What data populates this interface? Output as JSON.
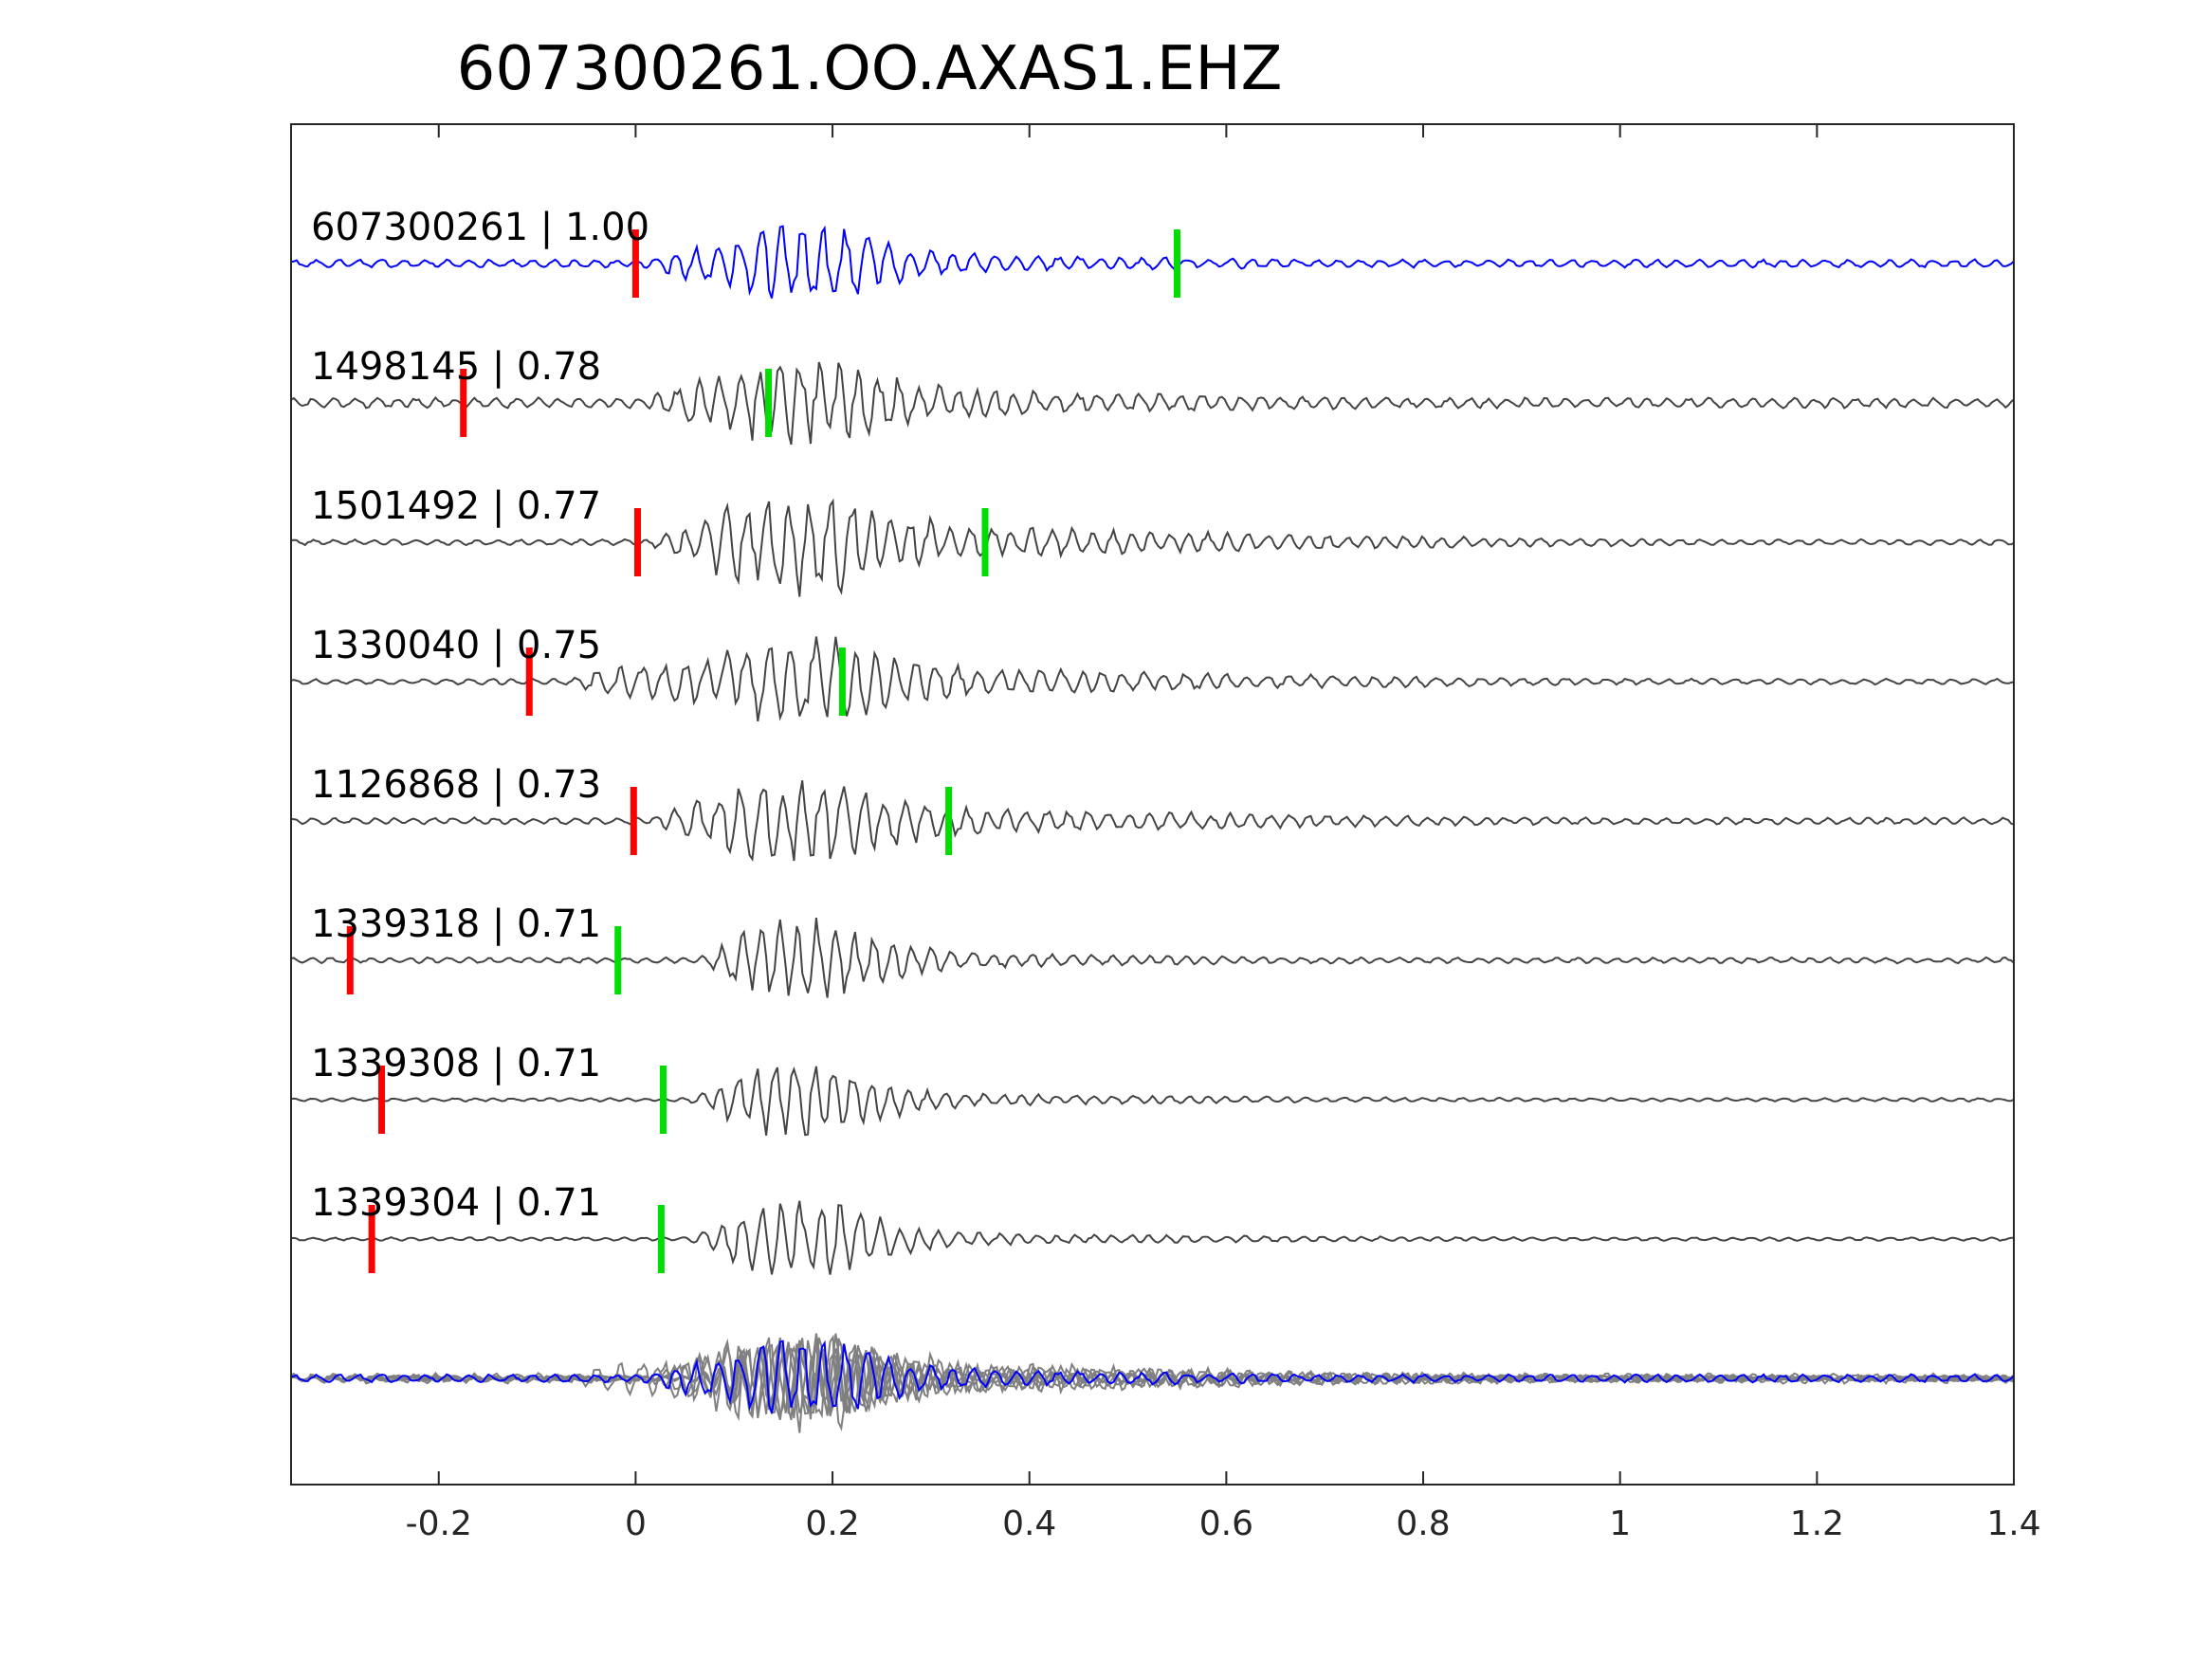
{
  "chart_data": {
    "type": "line",
    "title": "607300261.OO.AXAS1.EHZ",
    "xlabel": "",
    "ylabel": "",
    "xlim": [
      -0.35,
      1.4
    ],
    "x_ticks": [
      -0.2,
      0,
      0.2,
      0.4,
      0.6,
      0.8,
      1,
      1.2,
      1.4
    ],
    "x_tick_labels": [
      "-0.2",
      "0",
      "0.2",
      "0.4",
      "0.6",
      "0.8",
      "1",
      "1.2",
      "1.4"
    ],
    "grid": false,
    "legend": "none",
    "colors": {
      "template": "#0000ff",
      "neighbor": "#444444",
      "stack_neighbor": "#808080",
      "p_pick": "#ff0000",
      "s_pick": "#00dd00",
      "axes": "#262626"
    },
    "traces": [
      {
        "label": "607300261 | 1.00",
        "p_pick": 0.0,
        "s_pick": 0.55,
        "template": true,
        "onset": -0.02,
        "peak_amp": 0.55,
        "noise": 0.07,
        "coda": 0.18,
        "period": 0.022,
        "seed": 11
      },
      {
        "label": "1498145 | 0.78",
        "p_pick": -0.175,
        "s_pick": 0.135,
        "template": false,
        "onset": -0.01,
        "peak_amp": 0.58,
        "noise": 0.09,
        "coda": 0.28,
        "period": 0.021,
        "seed": 23
      },
      {
        "label": "1501492 | 0.77",
        "p_pick": 0.002,
        "s_pick": 0.355,
        "template": false,
        "onset": 0.0,
        "peak_amp": 0.62,
        "noise": 0.05,
        "coda": 0.33,
        "period": 0.021,
        "seed": 37
      },
      {
        "label": "1330040 | 0.75",
        "p_pick": -0.108,
        "s_pick": 0.21,
        "template": false,
        "onset": -0.08,
        "peak_amp": 0.55,
        "noise": 0.05,
        "coda": 0.28,
        "period": 0.022,
        "seed": 41
      },
      {
        "label": "1126868 | 0.73",
        "p_pick": -0.002,
        "s_pick": 0.318,
        "template": false,
        "onset": 0.0,
        "peak_amp": 0.58,
        "noise": 0.06,
        "coda": 0.27,
        "period": 0.021,
        "seed": 53
      },
      {
        "label": "1339318 | 0.71",
        "p_pick": -0.29,
        "s_pick": -0.018,
        "template": false,
        "onset": 0.05,
        "peak_amp": 0.62,
        "noise": 0.05,
        "coda": 0.14,
        "period": 0.02,
        "seed": 67
      },
      {
        "label": "1339308 | 0.71",
        "p_pick": -0.258,
        "s_pick": 0.028,
        "template": false,
        "onset": 0.04,
        "peak_amp": 0.6,
        "noise": 0.03,
        "coda": 0.12,
        "period": 0.02,
        "seed": 71
      },
      {
        "label": "1339304 | 0.71",
        "p_pick": -0.268,
        "s_pick": 0.026,
        "template": false,
        "onset": 0.04,
        "peak_amp": 0.6,
        "noise": 0.03,
        "coda": 0.12,
        "period": 0.02,
        "seed": 83
      }
    ],
    "stack": {
      "description_shown": false
    }
  }
}
